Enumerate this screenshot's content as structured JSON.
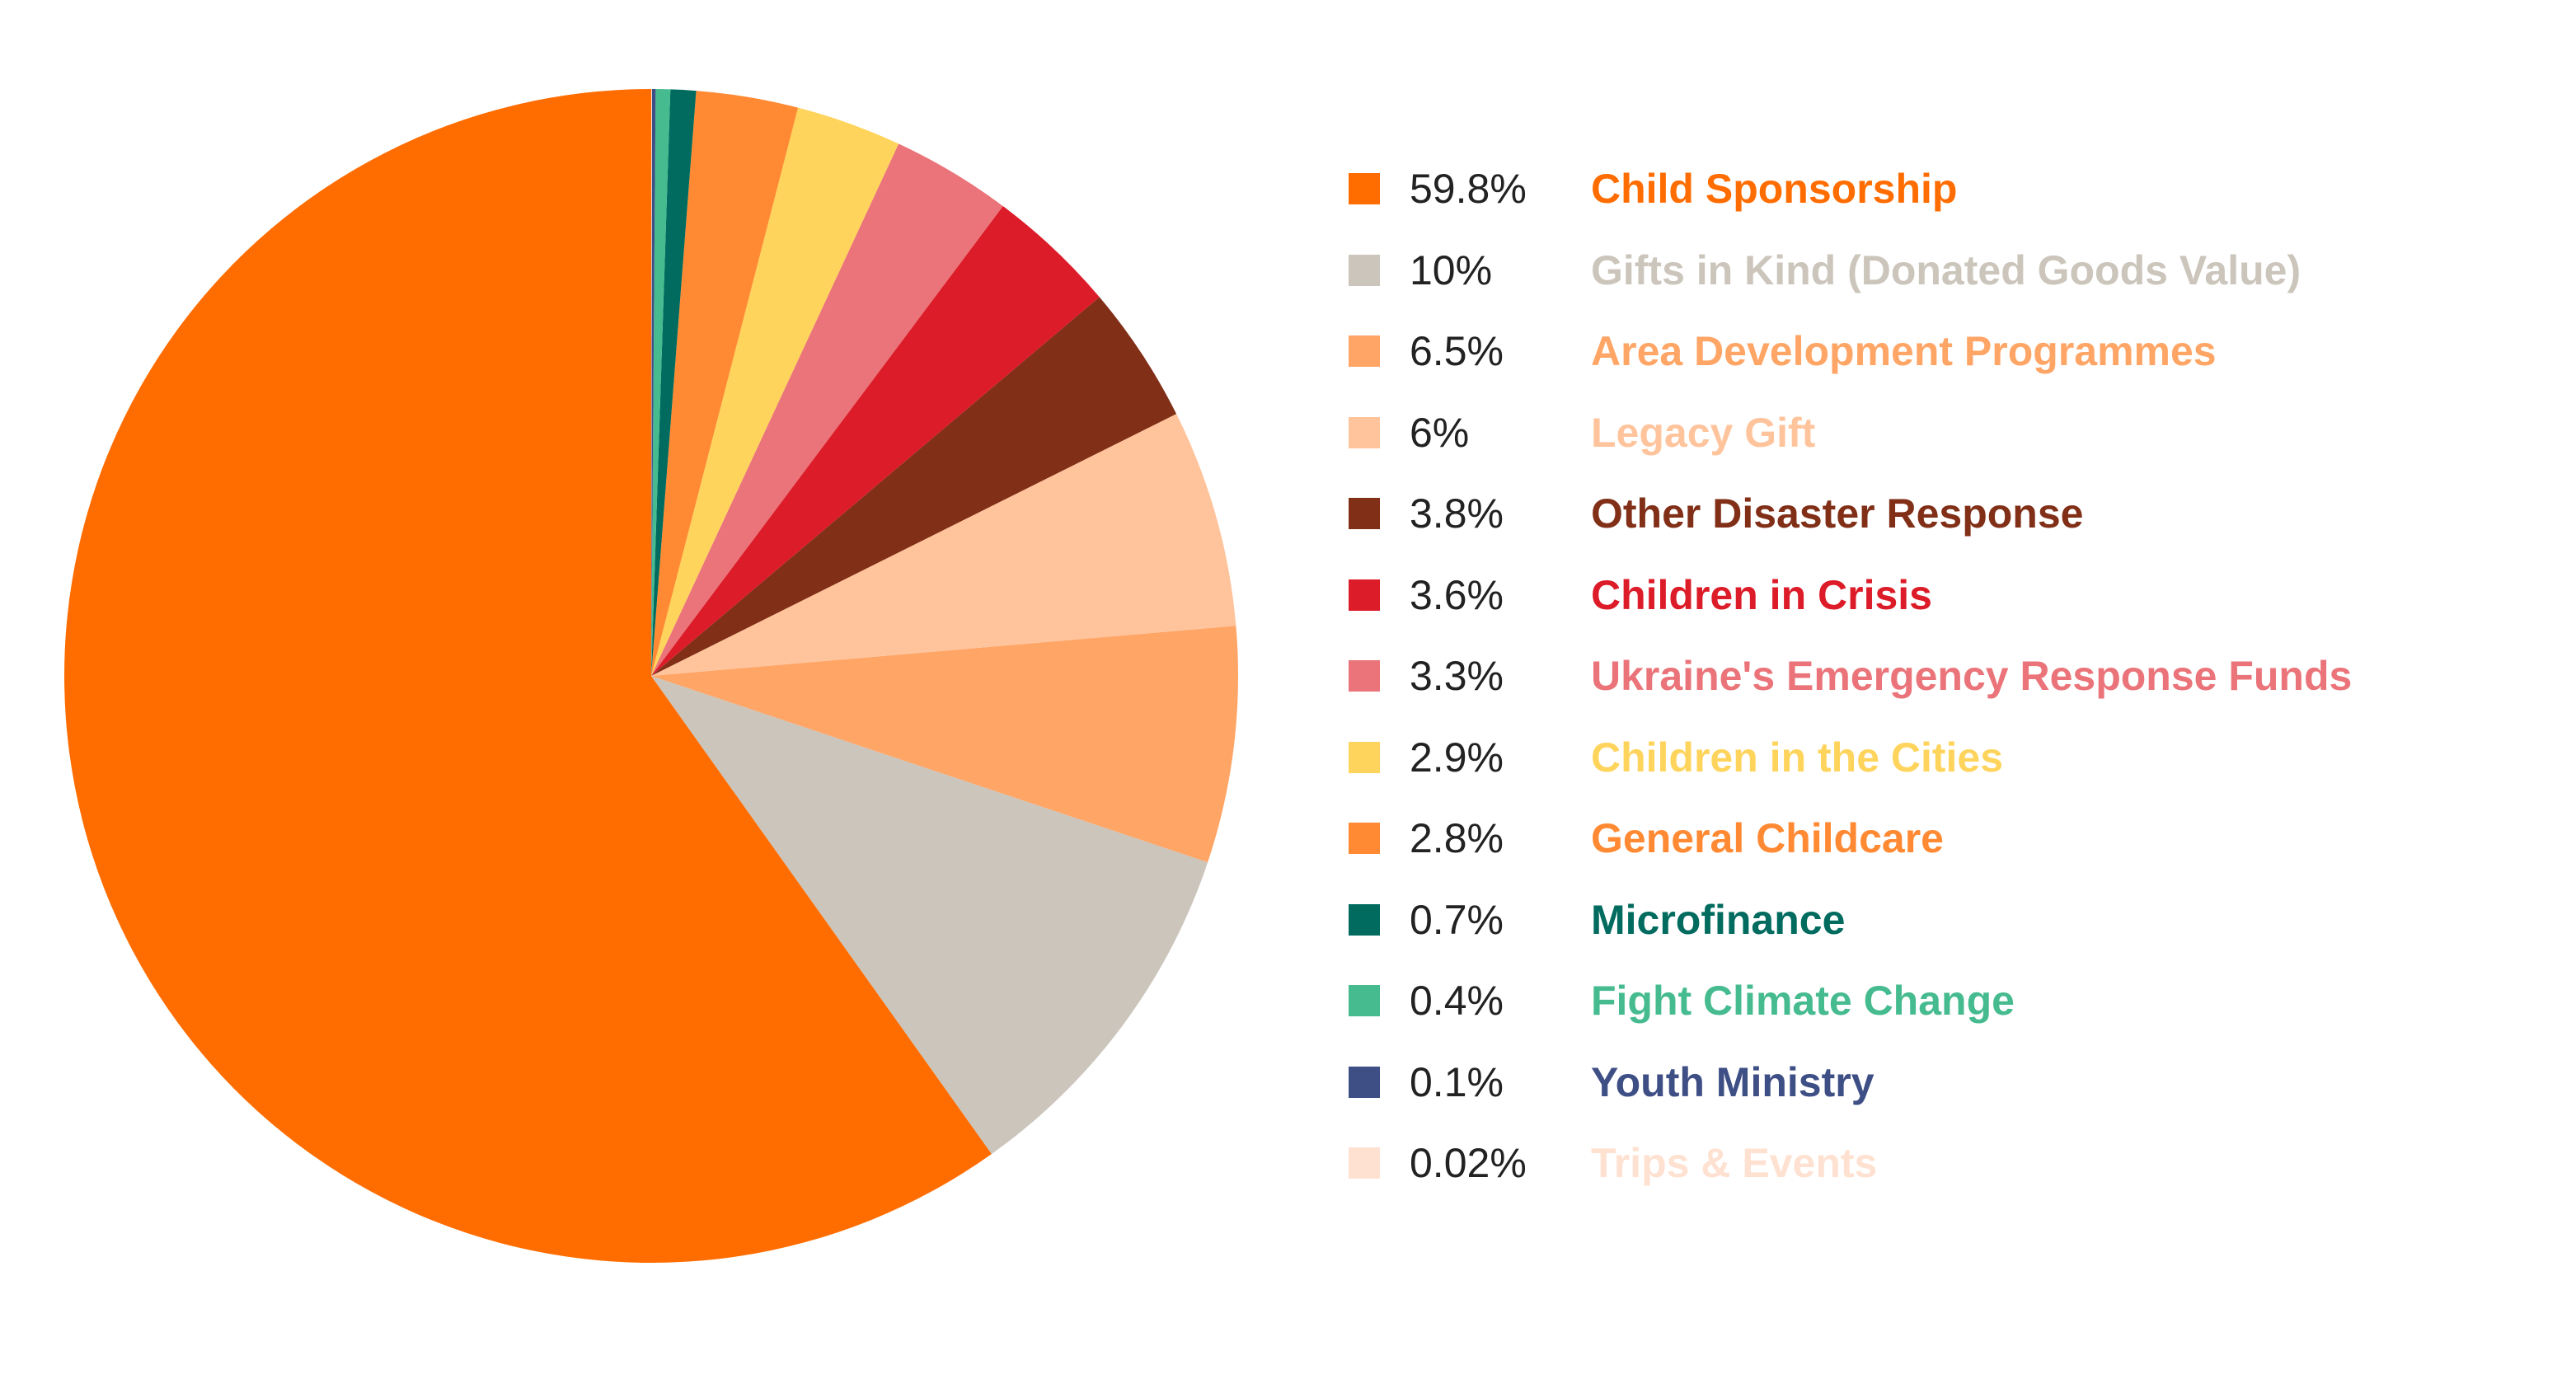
{
  "chart_data": {
    "type": "pie",
    "slices": [
      {
        "label": "Child Sponsorship",
        "value": 59.8,
        "display": "59.8%",
        "color": "#ff6d00"
      },
      {
        "label": "Gifts in Kind (Donated Goods Value)",
        "value": 10,
        "display": "10%",
        "color": "#cbc5bb"
      },
      {
        "label": "Area Development Programmes",
        "value": 6.5,
        "display": "6.5%",
        "color": "#ffa566"
      },
      {
        "label": "Legacy Gift",
        "value": 6,
        "display": "6%",
        "color": "#ffc49c"
      },
      {
        "label": "Other Disaster Response",
        "value": 3.8,
        "display": "3.8%",
        "color": "#812f17"
      },
      {
        "label": "Children in Crisis",
        "value": 3.6,
        "display": "3.6%",
        "color": "#dc1c28"
      },
      {
        "label": "Ukraine's Emergency Response Funds",
        "value": 3.3,
        "display": "3.3%",
        "color": "#ea7479"
      },
      {
        "label": "Children in the Cities",
        "value": 2.9,
        "display": "2.9%",
        "color": "#ffd45c"
      },
      {
        "label": "General Childcare",
        "value": 2.8,
        "display": "2.8%",
        "color": "#ff8a33"
      },
      {
        "label": "Microfinance",
        "value": 0.7,
        "display": "0.7%",
        "color": "#006b5e"
      },
      {
        "label": "Fight Climate Change",
        "value": 0.4,
        "display": "0.4%",
        "color": "#45bb8f"
      },
      {
        "label": "Youth Ministry",
        "value": 0.1,
        "display": "0.1%",
        "color": "#3e4f86"
      },
      {
        "label": "Trips & Events",
        "value": 0.02,
        "display": "0.02%",
        "color": "#ffe1d1"
      }
    ],
    "legend_position": "right",
    "start_angle": "top",
    "direction": "clockwise-descending-from-smallest"
  }
}
